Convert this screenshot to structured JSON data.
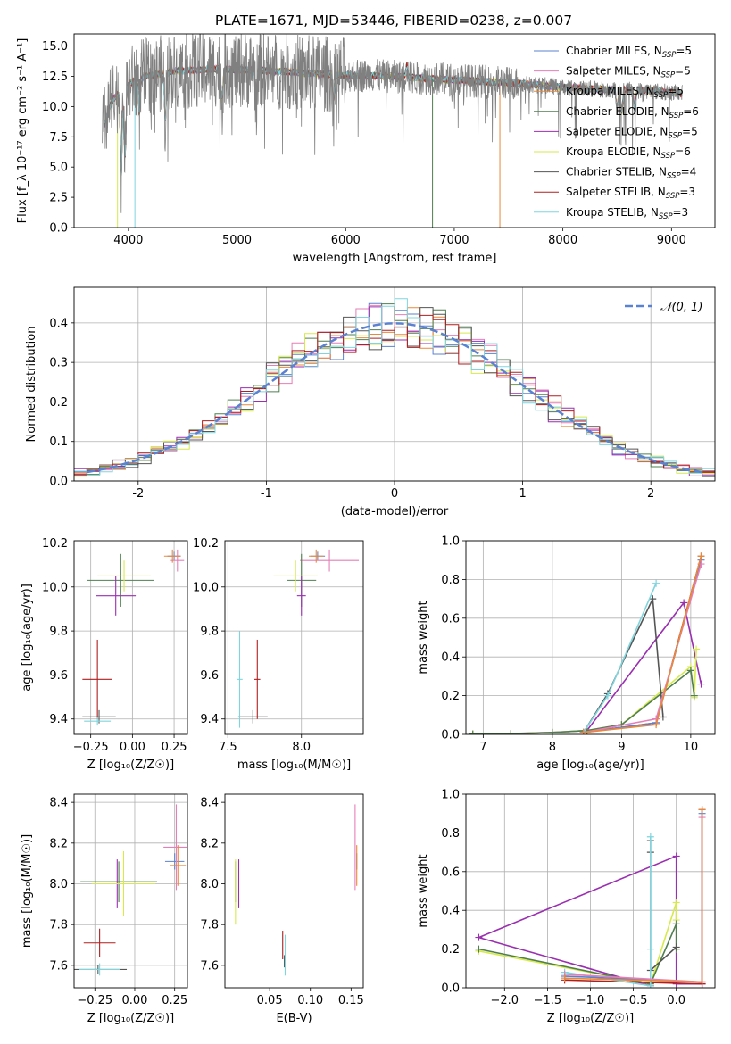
{
  "title": "PLATE=1671, MJD=53446, FIBERID=0238, z=0.007",
  "colors": {
    "c_miles": "#5b82d1",
    "s_miles": "#e57fb7",
    "k_miles": "#e8893a",
    "c_elodie": "#4f7f4f",
    "s_elodie": "#9a2fb0",
    "k_elodie": "#d7ea4c",
    "c_stelib": "#555555",
    "s_stelib": "#b01e1e",
    "k_stelib": "#7fd5de",
    "spectrum": "#808080",
    "normal_curve": "#5b82d1",
    "grid": "#b0b0b0"
  },
  "chart_data": [
    {
      "id": "spectrum",
      "type": "line",
      "xlabel": "wavelength [Angstrom, rest frame]",
      "ylabel": "Flux [f_λ 10⁻¹⁷ erg cm⁻² s⁻¹ A⁻¹]",
      "xlim": [
        3500,
        9400
      ],
      "ylim": [
        0,
        16
      ],
      "xticks": [
        4000,
        5000,
        6000,
        7000,
        8000,
        9000
      ],
      "yticks": [
        0.0,
        2.5,
        5.0,
        7.5,
        10.0,
        12.5,
        15.0
      ],
      "ytick_labels": [
        "0.0",
        "2.5",
        "5.0",
        "7.5",
        "10.0",
        "12.5",
        "15.0"
      ],
      "grid": false,
      "legend_position": "top-right",
      "legend": [
        {
          "key": "c_miles",
          "label": "Chabrier MILES, N",
          "sub": "SSP",
          "suffix": "=5"
        },
        {
          "key": "s_miles",
          "label": "Salpeter MILES, N",
          "sub": "SSP",
          "suffix": "=5"
        },
        {
          "key": "k_miles",
          "label": "Kroupa MILES, N",
          "sub": "SSP",
          "suffix": "=5"
        },
        {
          "key": "c_elodie",
          "label": "Chabrier ELODIE, N",
          "sub": "SSP",
          "suffix": "=6"
        },
        {
          "key": "s_elodie",
          "label": "Salpeter ELODIE, N",
          "sub": "SSP",
          "suffix": "=5"
        },
        {
          "key": "k_elodie",
          "label": "Kroupa ELODIE, N",
          "sub": "SSP",
          "suffix": "=6"
        },
        {
          "key": "c_stelib",
          "label": "Chabrier STELIB, N",
          "sub": "SSP",
          "suffix": "=4"
        },
        {
          "key": "s_stelib",
          "label": "Salpeter STELIB, N",
          "sub": "SSP",
          "suffix": "=3"
        },
        {
          "key": "k_stelib",
          "label": "Kroupa STELIB, N",
          "sub": "SSP",
          "suffix": "=3"
        }
      ],
      "continuum": {
        "x": [
          3760,
          3850,
          3950,
          4100,
          4400,
          4800,
          5200,
          5600,
          6000,
          6400,
          6800,
          7200,
          7600,
          8000,
          8400,
          8800,
          9100
        ],
        "y": [
          8.0,
          10.5,
          11.5,
          12.4,
          12.9,
          13.1,
          13.0,
          12.8,
          12.6,
          12.5,
          12.3,
          12.1,
          11.9,
          11.6,
          11.4,
          11.3,
          11.1
        ]
      }
    },
    {
      "id": "residuals",
      "type": "histogram",
      "xlabel": "(data-model)/error",
      "ylabel": "Normed distribution",
      "xlim": [
        -2.5,
        2.5
      ],
      "ylim": [
        0,
        0.49
      ],
      "xticks": [
        -2,
        -1,
        0,
        1,
        2
      ],
      "yticks": [
        0.0,
        0.1,
        0.2,
        0.3,
        0.4
      ],
      "ytick_labels": [
        "0.0",
        "0.1",
        "0.2",
        "0.3",
        "0.4"
      ],
      "grid": true,
      "bin_width": 0.1,
      "legend_position": "top-right",
      "normal_label": "𝒩(0, 1)"
    },
    {
      "id": "age_vs_Z",
      "type": "scatter",
      "xlabel": "Z [log₁₀(Z/Z☉)]",
      "ylabel": "age  [log₁₀(age/yr)]",
      "xlim": [
        -0.35,
        0.33
      ],
      "ylim": [
        9.33,
        10.21
      ],
      "xticks": [
        -0.25,
        0.0,
        0.25
      ],
      "xtick_labels": [
        "−0.25",
        "0.00",
        "0.25"
      ],
      "yticks": [
        9.4,
        9.6,
        9.8,
        10.0,
        10.2
      ],
      "ytick_labels": [
        "9.4",
        "9.6",
        "9.8",
        "10.0",
        "10.2"
      ],
      "grid": true,
      "points": [
        {
          "key": "c_miles",
          "x": 0.25,
          "y": 10.14,
          "xerr": 0.04,
          "yerr": 0.02
        },
        {
          "key": "s_miles",
          "x": 0.27,
          "y": 10.12,
          "xerr": 0.04,
          "yerr": 0.05
        },
        {
          "key": "k_miles",
          "x": 0.24,
          "y": 10.14,
          "xerr": 0.05,
          "yerr": 0.03
        },
        {
          "key": "c_elodie",
          "x": -0.07,
          "y": 10.03,
          "xerr": 0.2,
          "yerr": 0.12
        },
        {
          "key": "s_elodie",
          "x": -0.1,
          "y": 9.96,
          "xerr": 0.12,
          "yerr": 0.09
        },
        {
          "key": "k_elodie",
          "x": -0.05,
          "y": 10.05,
          "xerr": 0.16,
          "yerr": 0.07
        },
        {
          "key": "c_stelib",
          "x": -0.2,
          "y": 9.41,
          "xerr": 0.1,
          "yerr": 0.03
        },
        {
          "key": "s_stelib",
          "x": -0.21,
          "y": 9.58,
          "xerr": 0.09,
          "yerr": 0.18
        },
        {
          "key": "k_stelib",
          "x": -0.21,
          "y": 9.39,
          "xerr": 0.08,
          "yerr": 0.02
        }
      ]
    },
    {
      "id": "age_vs_mass",
      "type": "scatter",
      "xlabel": "mass [log₁₀(M/M☉)]",
      "ylabel": "",
      "xlim": [
        7.48,
        8.42
      ],
      "ylim": [
        9.33,
        10.21
      ],
      "xticks": [
        7.5,
        8.0
      ],
      "xtick_labels": [
        "7.5",
        "8.0"
      ],
      "yticks": [
        9.4,
        9.6,
        9.8,
        10.0,
        10.2
      ],
      "ytick_labels": [
        "9.4",
        "9.6",
        "9.8",
        "10.0",
        "10.2"
      ],
      "grid": true,
      "points": [
        {
          "key": "c_miles",
          "x": 8.11,
          "y": 10.14,
          "xerr": 0.05,
          "yerr": 0.02
        },
        {
          "key": "s_miles",
          "x": 8.19,
          "y": 10.12,
          "xerr": 0.2,
          "yerr": 0.05
        },
        {
          "key": "k_miles",
          "x": 8.1,
          "y": 10.14,
          "xerr": 0.05,
          "yerr": 0.03
        },
        {
          "key": "c_elodie",
          "x": 8.0,
          "y": 10.03,
          "xerr": 0.1,
          "yerr": 0.12
        },
        {
          "key": "s_elodie",
          "x": 8.0,
          "y": 9.96,
          "xerr": 0.03,
          "yerr": 0.09
        },
        {
          "key": "k_elodie",
          "x": 7.96,
          "y": 10.05,
          "xerr": 0.15,
          "yerr": 0.07
        },
        {
          "key": "c_stelib",
          "x": 7.67,
          "y": 9.41,
          "xerr": 0.1,
          "yerr": 0.03
        },
        {
          "key": "s_stelib",
          "x": 7.7,
          "y": 9.58,
          "xerr": 0.02,
          "yerr": 0.18
        },
        {
          "key": "k_stelib",
          "x": 7.58,
          "y": 9.58,
          "xerr": 0.02,
          "yerr": 0.22
        }
      ]
    },
    {
      "id": "massweight_vs_age",
      "type": "line",
      "xlabel": "age  [log₁₀(age/yr)]",
      "ylabel": "mass weight",
      "xlim": [
        6.75,
        10.35
      ],
      "ylim": [
        0,
        1.0
      ],
      "xticks": [
        7,
        8,
        9,
        10
      ],
      "xtick_labels": [
        "7",
        "8",
        "9",
        "10"
      ],
      "yticks": [
        0.0,
        0.2,
        0.4,
        0.6,
        0.8,
        1.0
      ],
      "ytick_labels": [
        "0.0",
        "0.2",
        "0.4",
        "0.6",
        "0.8",
        "1.0"
      ],
      "grid": true,
      "series": [
        {
          "key": "s_elodie",
          "x": [
            6.85,
            7.4,
            8.0,
            8.5,
            9.9,
            10.15
          ],
          "y": [
            0.002,
            0.004,
            0.01,
            0.02,
            0.68,
            0.26
          ]
        },
        {
          "key": "k_elodie",
          "x": [
            6.85,
            7.4,
            8.0,
            8.5,
            9.0,
            10.0,
            10.05,
            10.08
          ],
          "y": [
            0.002,
            0.003,
            0.01,
            0.02,
            0.05,
            0.35,
            0.19,
            0.44
          ]
        },
        {
          "key": "c_elodie",
          "x": [
            6.85,
            7.4,
            8.0,
            8.5,
            9.0,
            10.0,
            10.05
          ],
          "y": [
            0.002,
            0.003,
            0.01,
            0.02,
            0.05,
            0.33,
            0.2
          ]
        },
        {
          "key": "c_stelib",
          "x": [
            8.45,
            8.8,
            9.45,
            9.6
          ],
          "y": [
            0.01,
            0.21,
            0.7,
            0.09
          ]
        },
        {
          "key": "s_stelib",
          "x": [
            8.45,
            9.5,
            10.15
          ],
          "y": [
            0.01,
            0.06,
            0.92
          ]
        },
        {
          "key": "k_stelib",
          "x": [
            8.45,
            8.8,
            9.5
          ],
          "y": [
            0.01,
            0.2,
            0.78
          ]
        },
        {
          "key": "c_miles",
          "x": [
            8.45,
            9.5,
            10.15
          ],
          "y": [
            0.01,
            0.06,
            0.9
          ]
        },
        {
          "key": "s_miles",
          "x": [
            8.45,
            9.5,
            10.15
          ],
          "y": [
            0.01,
            0.08,
            0.88
          ]
        },
        {
          "key": "k_miles",
          "x": [
            8.45,
            9.5,
            10.15
          ],
          "y": [
            0.01,
            0.05,
            0.92
          ]
        }
      ]
    },
    {
      "id": "mass_vs_Z",
      "type": "scatter",
      "xlabel": "Z [log₁₀(Z/Z☉)]",
      "ylabel": "mass [log₁₀(M/M☉)]",
      "xlim": [
        -0.38,
        0.33
      ],
      "ylim": [
        7.49,
        8.44
      ],
      "xticks": [
        -0.25,
        0.0,
        0.25
      ],
      "xtick_labels": [
        "−0.25",
        "0.00",
        "0.25"
      ],
      "yticks": [
        7.6,
        7.8,
        8.0,
        8.2,
        8.4
      ],
      "ytick_labels": [
        "7.6",
        "7.8",
        "8.0",
        "8.2",
        "8.4"
      ],
      "grid": true,
      "points": [
        {
          "key": "c_miles",
          "x": 0.25,
          "y": 8.11,
          "xerr": 0.06,
          "yerr": 0.04
        },
        {
          "key": "s_miles",
          "x": 0.26,
          "y": 8.18,
          "xerr": 0.08,
          "yerr": 0.21
        },
        {
          "key": "k_miles",
          "x": 0.27,
          "y": 8.09,
          "xerr": 0.05,
          "yerr": 0.1
        },
        {
          "key": "c_elodie",
          "x": -0.1,
          "y": 8.01,
          "xerr": 0.24,
          "yerr": 0.1
        },
        {
          "key": "s_elodie",
          "x": -0.11,
          "y": 8.0,
          "xerr": 0.1,
          "yerr": 0.12
        },
        {
          "key": "k_elodie",
          "x": -0.07,
          "y": 8.0,
          "xerr": 0.2,
          "yerr": 0.16
        },
        {
          "key": "c_stelib",
          "x": -0.23,
          "y": 7.58,
          "xerr": 0.18,
          "yerr": 0.02
        },
        {
          "key": "s_stelib",
          "x": -0.22,
          "y": 7.71,
          "xerr": 0.1,
          "yerr": 0.07
        },
        {
          "key": "k_stelib",
          "x": -0.22,
          "y": 7.58,
          "xerr": 0.13,
          "yerr": 0.03
        }
      ]
    },
    {
      "id": "mass_vs_ebv",
      "type": "scatter",
      "xlabel": "E(B-V)",
      "ylabel": "",
      "xlim": [
        -0.005,
        0.165
      ],
      "ylim": [
        7.49,
        8.44
      ],
      "xticks": [
        0.05,
        0.1,
        0.15
      ],
      "xtick_labels": [
        "0.05",
        "0.10",
        "0.15"
      ],
      "yticks": [
        7.6,
        7.8,
        8.0,
        8.2,
        8.4
      ],
      "ytick_labels": [
        "7.6",
        "7.8",
        "8.0",
        "8.2",
        "8.4"
      ],
      "grid": false,
      "points": [
        {
          "key": "c_miles",
          "x": 0.157,
          "y": 8.11,
          "xerr": 0.0,
          "yerr": 0.04
        },
        {
          "key": "s_miles",
          "x": 0.155,
          "y": 8.18,
          "xerr": 0.0,
          "yerr": 0.21
        },
        {
          "key": "k_miles",
          "x": 0.157,
          "y": 8.09,
          "xerr": 0.0,
          "yerr": 0.1
        },
        {
          "key": "c_elodie",
          "x": 0.008,
          "y": 8.01,
          "xerr": 0.0,
          "yerr": 0.1
        },
        {
          "key": "s_elodie",
          "x": 0.012,
          "y": 8.0,
          "xerr": 0.0,
          "yerr": 0.12
        },
        {
          "key": "k_elodie",
          "x": 0.008,
          "y": 7.96,
          "xerr": 0.0,
          "yerr": 0.16
        },
        {
          "key": "c_stelib",
          "x": 0.068,
          "y": 7.62,
          "xerr": 0.0,
          "yerr": 0.03
        },
        {
          "key": "s_stelib",
          "x": 0.066,
          "y": 7.7,
          "xerr": 0.0,
          "yerr": 0.07
        },
        {
          "key": "k_stelib",
          "x": 0.069,
          "y": 7.65,
          "xerr": 0.0,
          "yerr": 0.1
        }
      ]
    },
    {
      "id": "massweight_vs_Z",
      "type": "line",
      "xlabel": "Z [log₁₀(Z/Z☉)]",
      "ylabel": "mass weight",
      "xlim": [
        -2.45,
        0.45
      ],
      "ylim": [
        0,
        1.0
      ],
      "xticks": [
        -2.0,
        -1.5,
        -1.0,
        -0.5,
        0.0
      ],
      "xtick_labels": [
        "−2.0",
        "−1.5",
        "−1.0",
        "−0.5",
        "0.0"
      ],
      "yticks": [
        0.0,
        0.2,
        0.4,
        0.6,
        0.8,
        1.0
      ],
      "ytick_labels": [
        "0.0",
        "0.2",
        "0.4",
        "0.6",
        "0.8",
        "1.0"
      ],
      "grid": true,
      "series": [
        {
          "key": "s_elodie",
          "x": [
            -0.3,
            -2.3,
            0.0,
            0.0,
            0.3
          ],
          "y": [
            0.01,
            0.26,
            0.68,
            0.02,
            0.02
          ]
        },
        {
          "key": "k_elodie",
          "x": [
            -2.3,
            -0.3,
            0.0,
            0.0,
            0.0
          ],
          "y": [
            0.19,
            0.02,
            0.44,
            0.35,
            0.2
          ]
        },
        {
          "key": "c_elodie",
          "x": [
            -2.3,
            -0.3,
            0.0,
            0.0
          ],
          "y": [
            0.2,
            0.02,
            0.33,
            0.2
          ]
        },
        {
          "key": "c_stelib",
          "x": [
            -0.3,
            -0.3,
            -0.3,
            0.0
          ],
          "y": [
            0.76,
            0.7,
            0.09,
            0.21
          ]
        },
        {
          "key": "s_stelib",
          "x": [
            -1.3,
            0.3,
            0.3
          ],
          "y": [
            0.04,
            0.02,
            0.92
          ]
        },
        {
          "key": "k_stelib",
          "x": [
            -1.3,
            -0.3,
            -0.3,
            -0.3
          ],
          "y": [
            0.08,
            0.01,
            0.2,
            0.78
          ]
        },
        {
          "key": "c_miles",
          "x": [
            -1.3,
            0.3,
            0.3
          ],
          "y": [
            0.06,
            0.03,
            0.9
          ]
        },
        {
          "key": "s_miles",
          "x": [
            -1.3,
            0.3,
            0.3
          ],
          "y": [
            0.07,
            0.03,
            0.88
          ]
        },
        {
          "key": "k_miles",
          "x": [
            -1.3,
            0.3,
            0.3
          ],
          "y": [
            0.05,
            0.03,
            0.92
          ]
        }
      ]
    }
  ]
}
